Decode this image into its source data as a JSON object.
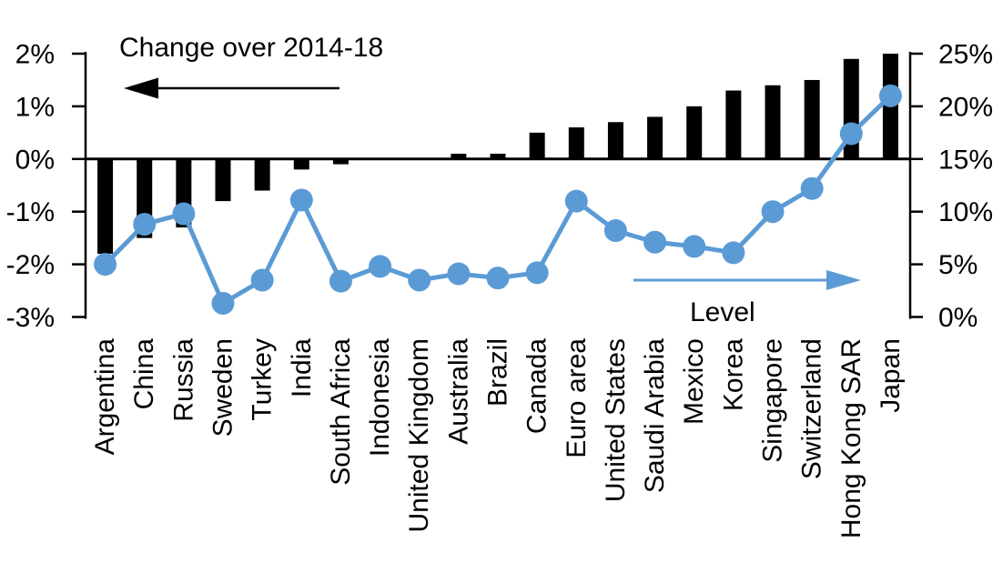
{
  "labels": {
    "change_arrow_label": "Change over 2014-18",
    "level_arrow_label": "Level"
  },
  "colors": {
    "bar": "#000000",
    "line": "#5B9BD5",
    "text": "#000000"
  },
  "chart_data": {
    "type": "combo",
    "title": "",
    "categories": [
      "Argentina",
      "China",
      "Russia",
      "Sweden",
      "Turkey",
      "India",
      "South Africa",
      "Indonesia",
      "United Kingdom",
      "Australia",
      "Brazil",
      "Canada",
      "Euro area",
      "United States",
      "Saudi Arabia",
      "Mexico",
      "Korea",
      "Singapore",
      "Switzerland",
      "Hong Kong SAR",
      "Japan"
    ],
    "series": [
      {
        "name": "Change over 2014-18",
        "type": "bar",
        "axis": "left",
        "color": "#000000",
        "values": [
          -1.8,
          -1.5,
          -1.3,
          -0.8,
          -0.6,
          -0.2,
          -0.1,
          0,
          0,
          0.1,
          0.1,
          0.5,
          0.6,
          0.7,
          0.8,
          1.0,
          1.3,
          1.4,
          1.5,
          1.9,
          2.0
        ]
      },
      {
        "name": "Level",
        "type": "line",
        "axis": "right",
        "color": "#5B9BD5",
        "values": [
          5.0,
          8.8,
          9.8,
          1.3,
          3.5,
          11.1,
          3.4,
          4.8,
          3.5,
          4.1,
          3.7,
          4.2,
          11.0,
          8.2,
          7.1,
          6.7,
          6.1,
          10.0,
          12.2,
          17.4,
          21.0
        ]
      }
    ],
    "left_axis": {
      "tick_labels": [
        "2%",
        "1%",
        "0%",
        "-1%",
        "-2%",
        "-3%"
      ],
      "tick_values": [
        2,
        1,
        0,
        -1,
        -2,
        -3
      ],
      "min": -3,
      "max": 2
    },
    "right_axis": {
      "tick_labels": [
        "25%",
        "20%",
        "15%",
        "10%",
        "5%",
        "0%"
      ],
      "tick_values": [
        25,
        20,
        15,
        10,
        5,
        0
      ],
      "min": 0,
      "max": 25
    },
    "grid": false,
    "legend_position": "none",
    "annotations": [
      {
        "text": "Change over 2014-18",
        "arrow_direction": "left",
        "arrow_color": "#000000"
      },
      {
        "text": "Level",
        "arrow_direction": "right",
        "arrow_color": "#5B9BD5"
      }
    ]
  }
}
